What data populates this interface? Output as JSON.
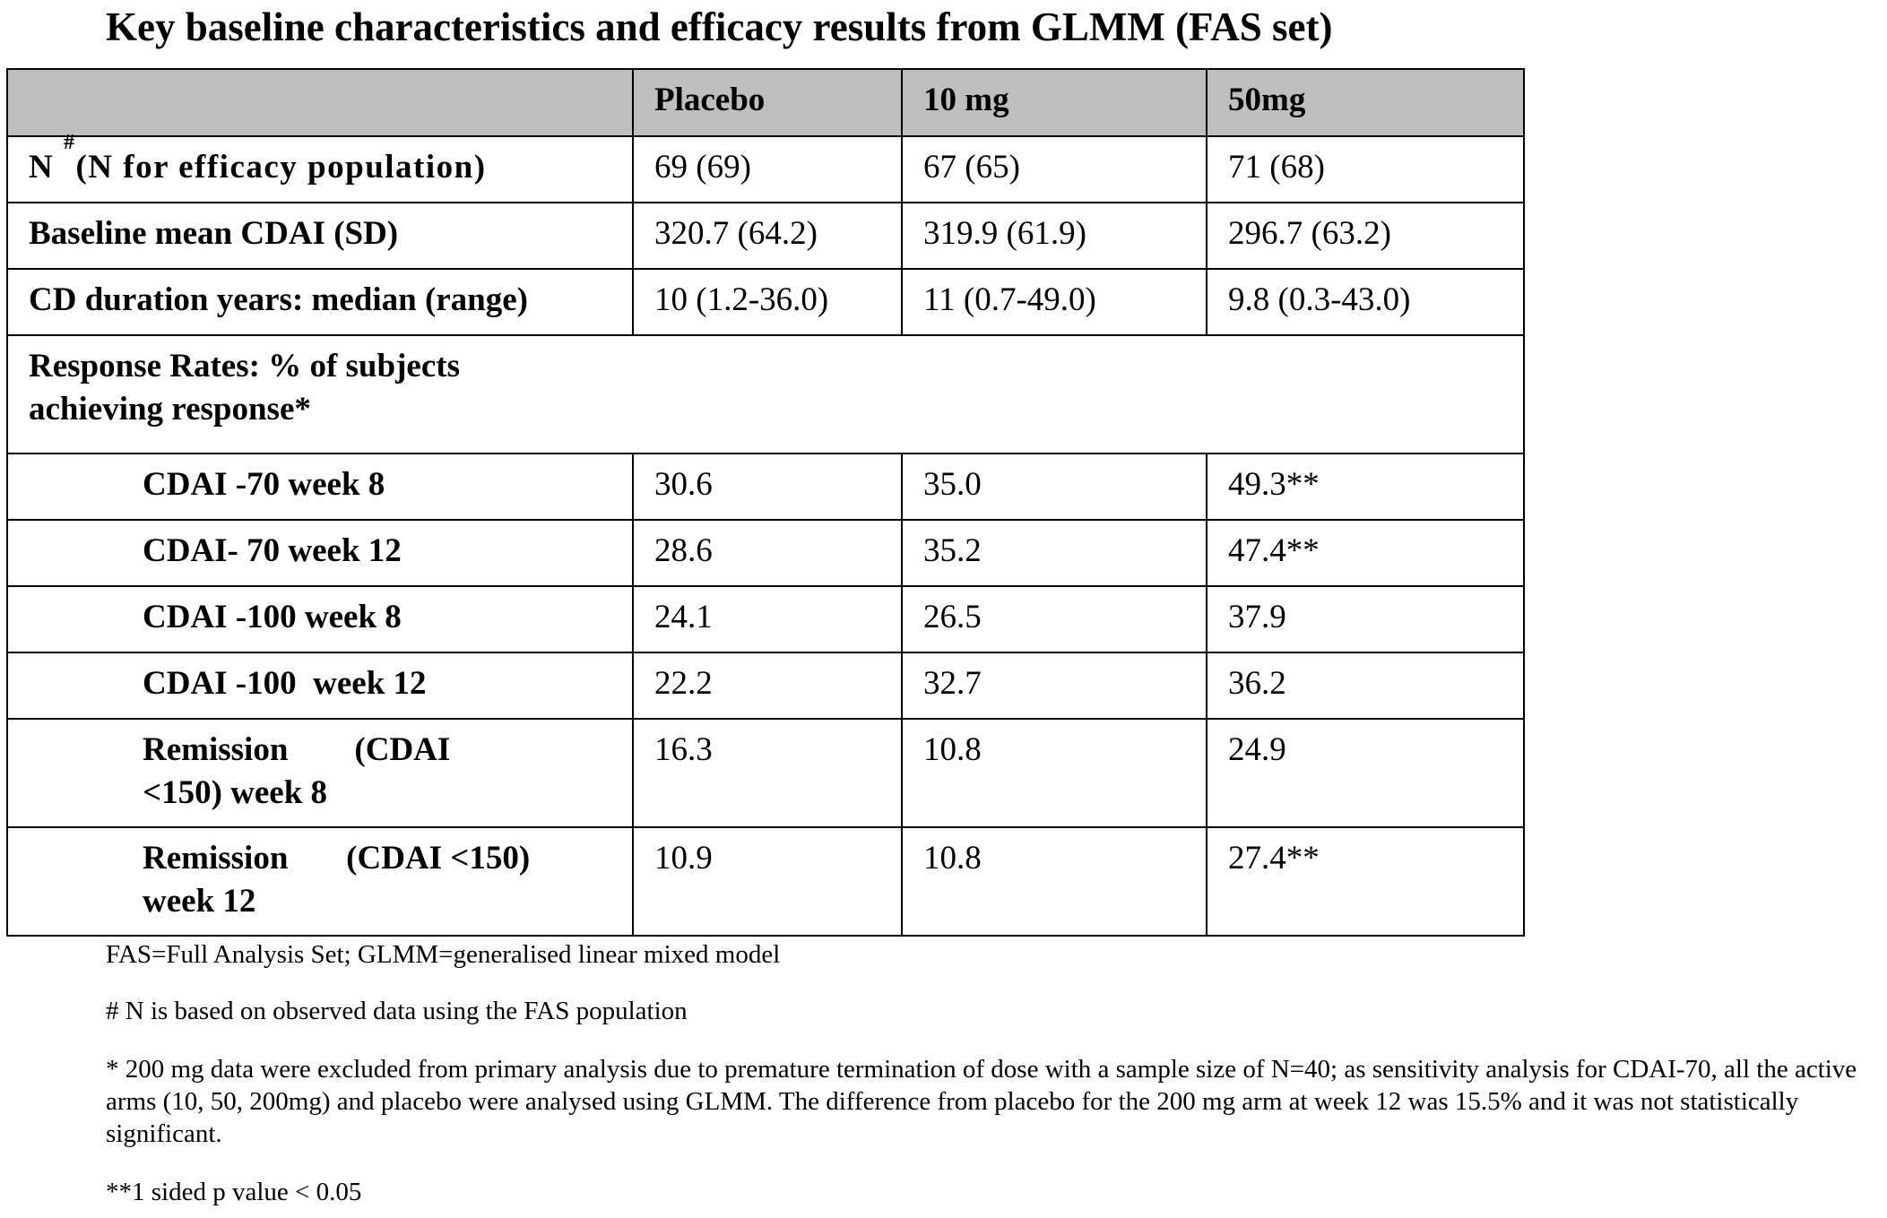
{
  "title": "Key baseline characteristics and efficacy results from GLMM (FAS set)",
  "table": {
    "headers": [
      "",
      "Placebo",
      "10 mg",
      "50mg"
    ],
    "n_row": {
      "label_prefix": "N ",
      "label_sup": "#",
      "label_rest": "(N for efficacy population)",
      "values": [
        "69 (69)",
        "67 (65)",
        "71 (68)"
      ]
    },
    "baseline_row": {
      "label": "Baseline mean CDAI (SD)",
      "values": [
        "320.7 (64.2)",
        "319.9 (61.9)",
        "296.7 (63.2)"
      ]
    },
    "duration_row": {
      "label": "CD duration years: median  (range)",
      "values": [
        "10 (1.2-36.0)",
        "11 (0.7-49.0)",
        "9.8 (0.3-43.0)"
      ]
    },
    "section_header": {
      "line1": "Response Rates: % of subjects",
      "line2": "achieving response*"
    },
    "response_rows": [
      {
        "label": "CDAI -70 week 8",
        "values": [
          "30.6",
          "35.0",
          "49.3**"
        ]
      },
      {
        "label": "CDAI- 70 week 12",
        "values": [
          "28.6",
          "35.2",
          "47.4**"
        ]
      },
      {
        "label": "CDAI -100 week 8",
        "values": [
          "24.1",
          "26.5",
          "37.9"
        ]
      },
      {
        "label": "CDAI -100  week 12",
        "values": [
          "22.2",
          "32.7",
          "36.2"
        ]
      }
    ],
    "remission_rows": [
      {
        "label_line1": "Remission        (CDAI",
        "label_line2": "<150) week 8",
        "values": [
          "16.3",
          "10.8",
          "24.9"
        ]
      },
      {
        "label_line1": "Remission       (CDAI <150)",
        "label_line2": "week 12",
        "values": [
          "10.9",
          "10.8",
          "27.4**"
        ]
      }
    ]
  },
  "footnotes": {
    "abbrev": "FAS=Full Analysis Set; GLMM=generalised linear mixed model",
    "n_note": "# N is based on observed data using the FAS population",
    "star_note": "* 200 mg data were excluded from primary analysis due to premature termination of dose with a sample size of N=40; as sensitivity analysis for CDAI-70, all the active arms (10, 50, 200mg) and placebo were analysed using GLMM. The difference from placebo for the 200 mg arm at week 12 was 15.5% and it was not statistically significant.",
    "pvalue_note": "**1 sided p value < 0.05"
  }
}
